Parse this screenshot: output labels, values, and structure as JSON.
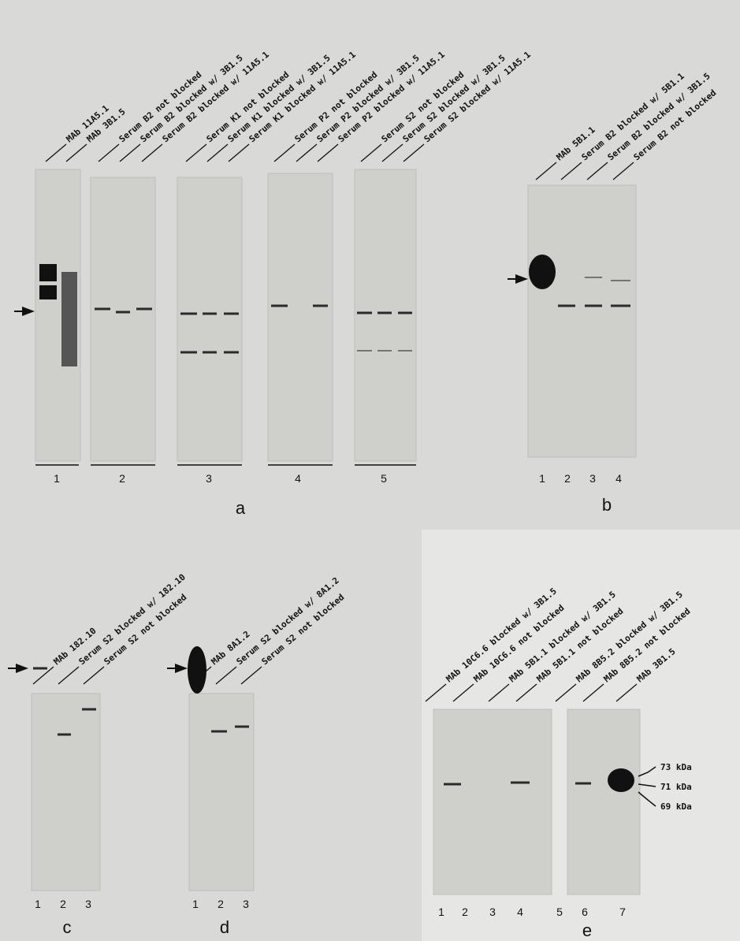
{
  "panels": [
    {
      "letter": "a",
      "lanes": [
        "MAb 11A5.1",
        "MAb 3B1.5",
        "Serum B2 not blocked",
        "Serum B2 blocked w/ 3B1.5",
        "Serum B2 blocked w/ 11A5.1",
        "Serum K1 not blocked",
        "Serum K1 blocked w/ 3B1.5",
        "Serum K1 blocked w/ 11A5.1",
        "Serum P2 not blocked",
        "Serum P2 blocked w/ 3B1.5",
        "Serum P2 blocked w/ 11A5.1",
        "Serum S2 not blocked",
        "Serum S2 blocked w/ 3B1.5",
        "Serum S2 blocked w/ 11A5.1"
      ],
      "numbers": [
        1,
        2,
        3,
        4,
        5
      ]
    },
    {
      "letter": "b",
      "lanes": [
        "MAb 5B1.1",
        "Serum B2 blocked w/ 5B1.1",
        "Serum B2 blocked w/ 3B1.5",
        "Serum B2 not blocked"
      ],
      "numbers": [
        1,
        2,
        3,
        4
      ]
    },
    {
      "letter": "c",
      "lanes": [
        "MAb 182.10",
        "Serum S2 blocked w/ 182.10",
        "Serum S2 not blocked"
      ],
      "numbers": [
        1,
        2,
        3
      ]
    },
    {
      "letter": "d",
      "lanes": [
        "MAb 8A1.2",
        "Serum S2 blocked w/ 8A1.2",
        "Serum S2 not blocked"
      ],
      "numbers": [
        1,
        2,
        3
      ]
    },
    {
      "letter": "e",
      "lanes": [
        "MAb 10C6.6 blocked w/ 3B1.5",
        "MAb 10C6.6 not blocked",
        "MAb 5B1.1 blocked w/ 3B1.5",
        "MAb 5B1.1 not blocked",
        "MAb 8B5.2 blocked w/ 3B1.5",
        "MAb 8B5.2 not blocked",
        "MAb 3B1.5"
      ],
      "numbers": [
        1,
        2,
        3,
        4,
        5,
        6,
        7
      ],
      "markers": [
        "73 kDa",
        "71 kDa",
        "69 kDa"
      ]
    }
  ]
}
